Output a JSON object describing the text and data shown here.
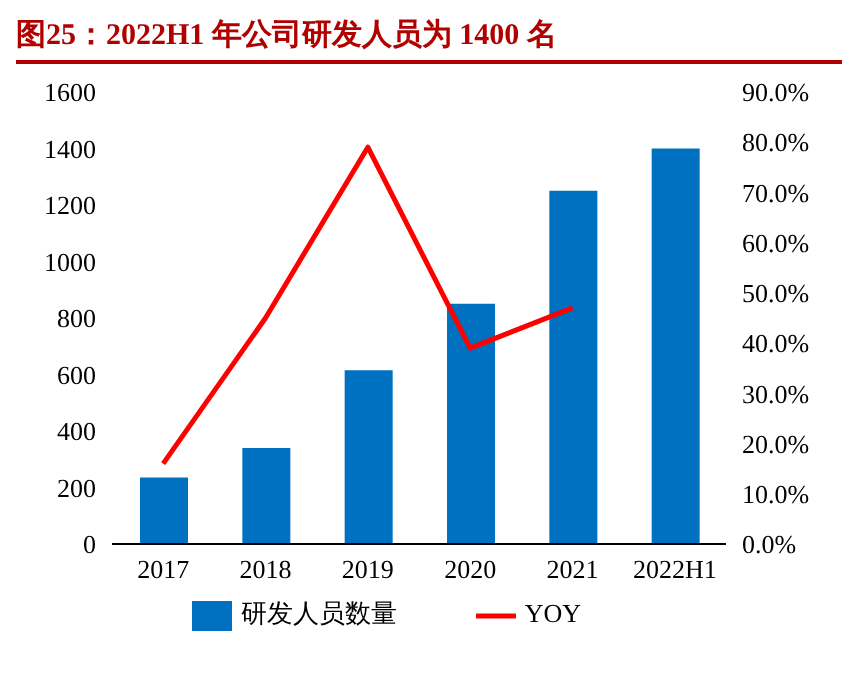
{
  "chart_data": {
    "type": "bar",
    "title": "图25：2022H1 年公司研发人员为 1400 名",
    "categories": [
      "2017",
      "2018",
      "2019",
      "2020",
      "2021",
      "2022H1"
    ],
    "series": [
      {
        "name": "研发人员数量",
        "color": "#0070c0",
        "values": [
          235,
          340,
          615,
          850,
          1250,
          1400
        ]
      },
      {
        "name": "YOY",
        "type": "line",
        "axis": "y2",
        "color": "#ff0000",
        "values": [
          16,
          45,
          79,
          39,
          47,
          null
        ]
      }
    ],
    "ylim": [
      0,
      1600
    ],
    "yticks": [
      0,
      200,
      400,
      600,
      800,
      1000,
      1200,
      1400,
      1600
    ],
    "y2lim": [
      0,
      90
    ],
    "y2ticks": [
      {
        "value": 0,
        "label": "0.0%"
      },
      {
        "value": 10,
        "label": "10.0%"
      },
      {
        "value": 20,
        "label": "20.0%"
      },
      {
        "value": 30,
        "label": "30.0%"
      },
      {
        "value": 40,
        "label": "40.0%"
      },
      {
        "value": 50,
        "label": "50.0%"
      },
      {
        "value": 60,
        "label": "60.0%"
      },
      {
        "value": 70,
        "label": "70.0%"
      },
      {
        "value": 80,
        "label": "80.0%"
      },
      {
        "value": 90,
        "label": "90.0%"
      }
    ],
    "legend": "bottom",
    "marker": "none",
    "grid": false
  }
}
